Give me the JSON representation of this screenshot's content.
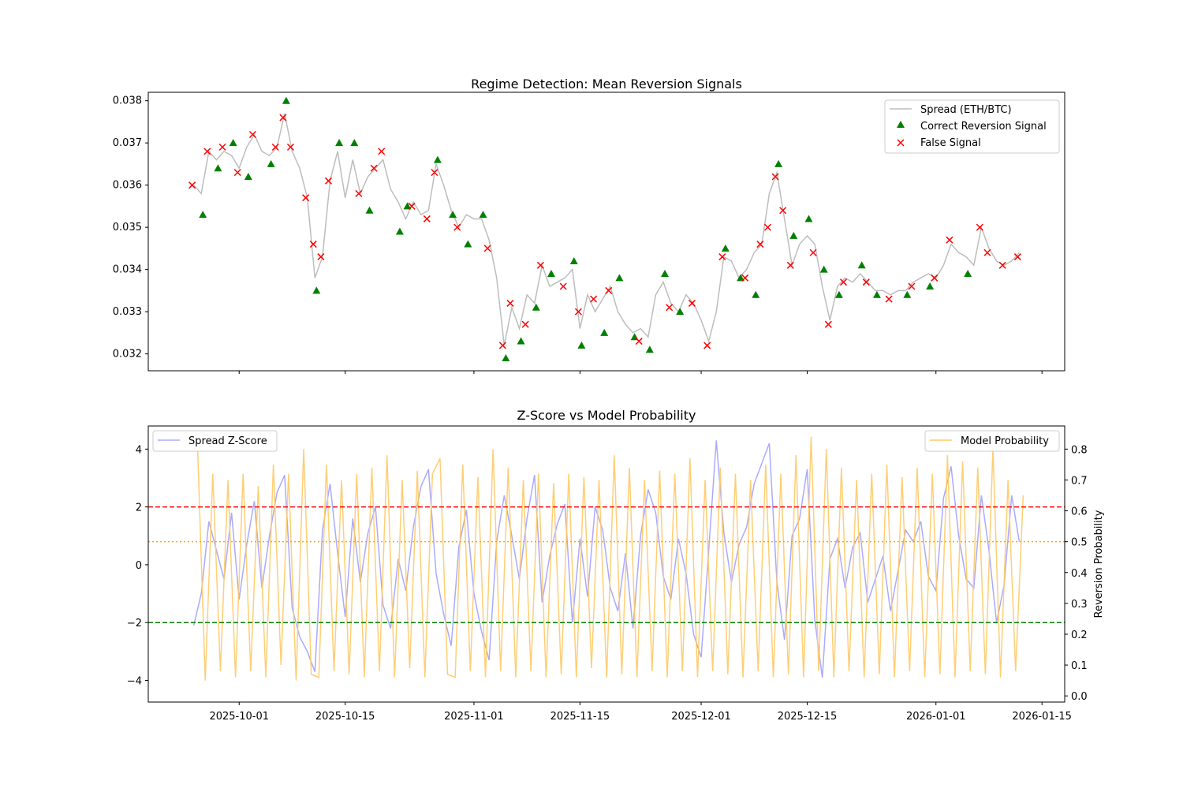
{
  "colors": {
    "spread": "#bdbdbd",
    "correct": "#008000",
    "false": "#ff0000",
    "zscore": "#aaaaff",
    "probability": "#ffc966",
    "upper": "#ff0000",
    "lower": "#008000",
    "mid": "#ffa500"
  },
  "chart_data": [
    {
      "type": "line",
      "title": "Regime Detection: Mean Reversion Signals",
      "xlabel": "",
      "ylabel": "",
      "xlim": [
        "2025-09-19",
        "2026-01-18"
      ],
      "ylim": [
        0.0316,
        0.0382
      ],
      "yticks": [
        "0.032",
        "0.033",
        "0.034",
        "0.035",
        "0.036",
        "0.037",
        "0.038"
      ],
      "xticks": [
        "2025-10-01",
        "2025-10-15",
        "2025-11-01",
        "2025-11-15",
        "2025-12-01",
        "2025-12-15",
        "2026-01-01",
        "2026-01-15"
      ],
      "legend": {
        "placement": "upper right",
        "entries": [
          "Spread (ETH/BTC)",
          "Correct Reversion Signal",
          "False Signal"
        ]
      },
      "series": [
        {
          "name": "Spread (ETH/BTC)",
          "type": "line",
          "x": [
            "2025-09-25",
            "2025-09-26",
            "2025-09-27",
            "2025-09-28",
            "2025-09-29",
            "2025-09-30",
            "2025-10-01",
            "2025-10-02",
            "2025-10-03",
            "2025-10-04",
            "2025-10-05",
            "2025-10-06",
            "2025-10-07",
            "2025-10-08",
            "2025-10-09",
            "2025-10-10",
            "2025-10-11",
            "2025-10-12",
            "2025-10-13",
            "2025-10-14",
            "2025-10-15",
            "2025-10-16",
            "2025-10-17",
            "2025-10-18",
            "2025-10-19",
            "2025-10-20",
            "2025-10-21",
            "2025-10-22",
            "2025-10-23",
            "2025-10-24",
            "2025-10-25",
            "2025-10-26",
            "2025-10-27",
            "2025-10-28",
            "2025-10-29",
            "2025-10-30",
            "2025-10-31",
            "2025-11-01",
            "2025-11-02",
            "2025-11-03",
            "2025-11-04",
            "2025-11-05",
            "2025-11-06",
            "2025-11-07",
            "2025-11-08",
            "2025-11-09",
            "2025-11-10",
            "2025-11-11",
            "2025-11-12",
            "2025-11-13",
            "2025-11-14",
            "2025-11-15",
            "2025-11-16",
            "2025-11-17",
            "2025-11-18",
            "2025-11-19",
            "2025-11-20",
            "2025-11-21",
            "2025-11-22",
            "2025-11-23",
            "2025-11-24",
            "2025-11-25",
            "2025-11-26",
            "2025-11-27",
            "2025-11-28",
            "2025-11-29",
            "2025-11-30",
            "2025-12-01",
            "2025-12-02",
            "2025-12-03",
            "2025-12-04",
            "2025-12-05",
            "2025-12-06",
            "2025-12-07",
            "2025-12-08",
            "2025-12-09",
            "2025-12-10",
            "2025-12-11",
            "2025-12-12",
            "2025-12-13",
            "2025-12-14",
            "2025-12-15",
            "2025-12-16",
            "2025-12-17",
            "2025-12-18",
            "2025-12-19",
            "2025-12-20",
            "2025-12-21",
            "2025-12-22",
            "2025-12-23",
            "2025-12-24",
            "2025-12-25",
            "2025-12-26",
            "2025-12-27",
            "2025-12-28",
            "2025-12-29",
            "2025-12-30",
            "2025-12-31",
            "2026-01-01",
            "2026-01-02",
            "2026-01-03",
            "2026-01-04",
            "2026-01-05",
            "2026-01-06",
            "2026-01-07",
            "2026-01-08",
            "2026-01-09",
            "2026-01-10",
            "2026-01-11",
            "2026-01-12"
          ],
          "y": [
            0.036,
            0.0358,
            0.0368,
            0.0366,
            0.0368,
            0.0367,
            0.0364,
            0.0369,
            0.0372,
            0.0368,
            0.0367,
            0.0369,
            0.0377,
            0.0368,
            0.0364,
            0.0357,
            0.0338,
            0.0343,
            0.0361,
            0.0368,
            0.0357,
            0.0366,
            0.0358,
            0.0362,
            0.0364,
            0.0366,
            0.0359,
            0.0356,
            0.0352,
            0.0356,
            0.0353,
            0.0354,
            0.0365,
            0.036,
            0.0354,
            0.035,
            0.0353,
            0.0352,
            0.0352,
            0.0347,
            0.0338,
            0.0322,
            0.0331,
            0.0326,
            0.0334,
            0.0332,
            0.0341,
            0.0336,
            0.0337,
            0.0338,
            0.034,
            0.0326,
            0.0334,
            0.033,
            0.0333,
            0.0336,
            0.033,
            0.0327,
            0.0325,
            0.0326,
            0.0324,
            0.0334,
            0.0337,
            0.0332,
            0.033,
            0.0334,
            0.0332,
            0.0328,
            0.0323,
            0.033,
            0.0343,
            0.0342,
            0.0338,
            0.034,
            0.0344,
            0.0346,
            0.0358,
            0.0363,
            0.0352,
            0.0341,
            0.0346,
            0.0348,
            0.0346,
            0.0336,
            0.0328,
            0.0336,
            0.0338,
            0.0337,
            0.0339,
            0.0337,
            0.0335,
            0.0335,
            0.0334,
            0.0335,
            0.0335,
            0.0337,
            0.0338,
            0.0339,
            0.0338,
            0.0341,
            0.0346,
            0.0344,
            0.0343,
            0.0341,
            0.035,
            0.0345,
            0.0342,
            0.0341,
            0.0342,
            0.0344
          ]
        },
        {
          "name": "Correct Reversion Signal",
          "type": "scatter",
          "marker": "triangle",
          "x": [
            "2025-09-26",
            "2025-09-28",
            "2025-09-30",
            "2025-10-02",
            "2025-10-05",
            "2025-10-07",
            "2025-10-11",
            "2025-10-14",
            "2025-10-16",
            "2025-10-18",
            "2025-10-22",
            "2025-10-23",
            "2025-10-27",
            "2025-10-29",
            "2025-10-31",
            "2025-11-02",
            "2025-11-05",
            "2025-11-07",
            "2025-11-09",
            "2025-11-11",
            "2025-11-14",
            "2025-11-15",
            "2025-11-18",
            "2025-11-20",
            "2025-11-22",
            "2025-11-24",
            "2025-11-26",
            "2025-11-28",
            "2025-12-04",
            "2025-12-06",
            "2025-12-08",
            "2025-12-11",
            "2025-12-13",
            "2025-12-15",
            "2025-12-17",
            "2025-12-19",
            "2025-12-22",
            "2025-12-24",
            "2025-12-28",
            "2025-12-31",
            "2026-01-05"
          ],
          "y": [
            0.0353,
            0.0364,
            0.037,
            0.0362,
            0.0365,
            0.038,
            0.0335,
            0.037,
            0.037,
            0.0354,
            0.0349,
            0.0355,
            0.0366,
            0.0353,
            0.0346,
            0.0353,
            0.0319,
            0.0323,
            0.0331,
            0.0339,
            0.0342,
            0.0322,
            0.0325,
            0.0338,
            0.0324,
            0.0321,
            0.0339,
            0.033,
            0.0345,
            0.0338,
            0.0334,
            0.0365,
            0.0348,
            0.0352,
            0.034,
            0.0334,
            0.0341,
            0.0334,
            0.0334,
            0.0336,
            0.0339
          ]
        },
        {
          "name": "False Signal",
          "type": "scatter",
          "marker": "x",
          "x": [
            "2025-09-25",
            "2025-09-27",
            "2025-09-29",
            "2025-10-01",
            "2025-10-03",
            "2025-10-06",
            "2025-10-07",
            "2025-10-08",
            "2025-10-10",
            "2025-10-11",
            "2025-10-12",
            "2025-10-13",
            "2025-10-17",
            "2025-10-19",
            "2025-10-20",
            "2025-10-24",
            "2025-10-26",
            "2025-10-27",
            "2025-10-30",
            "2025-11-03",
            "2025-11-05",
            "2025-11-06",
            "2025-11-08",
            "2025-11-10",
            "2025-11-13",
            "2025-11-15",
            "2025-11-17",
            "2025-11-19",
            "2025-11-23",
            "2025-11-27",
            "2025-11-30",
            "2025-12-02",
            "2025-12-04",
            "2025-12-07",
            "2025-12-09",
            "2025-12-10",
            "2025-12-11",
            "2025-12-12",
            "2025-12-13",
            "2025-12-16",
            "2025-12-18",
            "2025-12-20",
            "2025-12-23",
            "2025-12-26",
            "2025-12-29",
            "2026-01-01",
            "2026-01-03",
            "2026-01-07",
            "2026-01-08",
            "2026-01-10",
            "2026-01-12"
          ],
          "y": [
            0.036,
            0.0368,
            0.0369,
            0.0363,
            0.0372,
            0.0369,
            0.0376,
            0.0369,
            0.0357,
            0.0346,
            0.0343,
            0.0361,
            0.0358,
            0.0364,
            0.0368,
            0.0355,
            0.0352,
            0.0363,
            0.035,
            0.0345,
            0.0322,
            0.0332,
            0.0327,
            0.0341,
            0.0336,
            0.033,
            0.0333,
            0.0335,
            0.0323,
            0.0331,
            0.0332,
            0.0322,
            0.0343,
            0.0338,
            0.0346,
            0.035,
            0.0362,
            0.0354,
            0.0341,
            0.0344,
            0.0327,
            0.0337,
            0.0337,
            0.0333,
            0.0336,
            0.0338,
            0.0347,
            0.035,
            0.0344,
            0.0341,
            0.0343
          ]
        }
      ]
    },
    {
      "type": "line",
      "title": "Z-Score vs Model Probability",
      "xlabel": "",
      "ylabel": "",
      "ylabel_right": "Reversion Probability",
      "xlim": [
        "2025-09-19",
        "2026-01-18"
      ],
      "ylim": [
        -4.75,
        4.8
      ],
      "ylim_right": [
        -0.02,
        0.875
      ],
      "yticks": [
        "−4",
        "−2",
        "0",
        "2",
        "4"
      ],
      "yticks_right": [
        "0.0",
        "0.1",
        "0.2",
        "0.3",
        "0.4",
        "0.5",
        "0.6",
        "0.7",
        "0.8"
      ],
      "xticks": [
        "2025-10-01",
        "2025-10-15",
        "2025-11-01",
        "2025-11-15",
        "2025-12-01",
        "2025-12-15",
        "2026-01-01",
        "2026-01-15"
      ],
      "hlines": [
        {
          "axis": "left",
          "y": 2,
          "style": "dashed",
          "color": "#ff0000"
        },
        {
          "axis": "left",
          "y": -2,
          "style": "dashed",
          "color": "#008000"
        },
        {
          "axis": "right",
          "y": 0.5,
          "style": "dotted",
          "color": "#ffa500"
        }
      ],
      "legend": {
        "left": {
          "placement": "upper left",
          "entries": [
            "Spread Z-Score"
          ]
        },
        "right": {
          "placement": "upper right",
          "entries": [
            "Model Probability"
          ]
        }
      },
      "series": [
        {
          "name": "Spread Z-Score",
          "axis": "left",
          "y": [
            -2.1,
            -1.0,
            1.5,
            0.5,
            -0.5,
            1.8,
            -1.2,
            0.7,
            2.2,
            -0.8,
            1.0,
            2.5,
            3.1,
            -1.5,
            -2.5,
            -3.0,
            -3.7,
            1.2,
            2.8,
            0.4,
            -1.8,
            1.6,
            -0.6,
            1.1,
            2.0,
            -1.4,
            -2.2,
            0.2,
            -0.9,
            1.3,
            2.7,
            3.3,
            -0.3,
            -1.7,
            -2.8,
            0.6,
            1.9,
            -1.0,
            -2.3,
            -3.3,
            0.8,
            2.4,
            1.0,
            -0.5,
            1.6,
            3.1,
            -1.3,
            0.3,
            1.4,
            2.1,
            -2.0,
            0.9,
            -1.1,
            2.0,
            1.2,
            -0.8,
            -1.6,
            0.4,
            -2.2,
            1.0,
            2.6,
            1.8,
            -0.4,
            -1.2,
            0.9,
            -0.3,
            -2.4,
            -3.2,
            0.5,
            4.3,
            1.1,
            -0.6,
            0.7,
            1.3,
            2.8,
            3.5,
            4.2,
            -0.6,
            -2.6,
            1.0,
            1.6,
            3.3,
            -1.9,
            -3.9,
            0.2,
            0.9,
            -0.8,
            0.6,
            1.1,
            -1.3,
            -0.5,
            0.3,
            -1.6,
            -0.2,
            1.2,
            0.8,
            1.5,
            -0.4,
            -0.9,
            2.3,
            3.4,
            1.0,
            -0.5,
            -0.8,
            2.4,
            0.5,
            -2.0,
            -0.7,
            2.4,
            0.8
          ]
        },
        {
          "name": "Model Probability",
          "axis": "right",
          "y": [
            0.8,
            0.05,
            0.72,
            0.08,
            0.7,
            0.06,
            0.72,
            0.08,
            0.68,
            0.06,
            0.75,
            0.1,
            0.72,
            0.05,
            0.8,
            0.07,
            0.06,
            0.75,
            0.08,
            0.7,
            0.07,
            0.72,
            0.06,
            0.74,
            0.08,
            0.78,
            0.06,
            0.7,
            0.09,
            0.73,
            0.06,
            0.72,
            0.77,
            0.07,
            0.06,
            0.75,
            0.08,
            0.71,
            0.06,
            0.8,
            0.08,
            0.74,
            0.06,
            0.7,
            0.08,
            0.72,
            0.06,
            0.69,
            0.07,
            0.72,
            0.06,
            0.71,
            0.09,
            0.7,
            0.06,
            0.78,
            0.07,
            0.74,
            0.06,
            0.7,
            0.08,
            0.73,
            0.06,
            0.72,
            0.08,
            0.77,
            0.06,
            0.7,
            0.08,
            0.74,
            0.07,
            0.72,
            0.06,
            0.7,
            0.08,
            0.75,
            0.06,
            0.72,
            0.07,
            0.78,
            0.06,
            0.84,
            0.08,
            0.8,
            0.06,
            0.74,
            0.08,
            0.7,
            0.06,
            0.72,
            0.07,
            0.75,
            0.06,
            0.71,
            0.08,
            0.74,
            0.06,
            0.72,
            0.07,
            0.78,
            0.06,
            0.76,
            0.08,
            0.74,
            0.07,
            0.8,
            0.06,
            0.7,
            0.08,
            0.65
          ]
        }
      ]
    }
  ]
}
